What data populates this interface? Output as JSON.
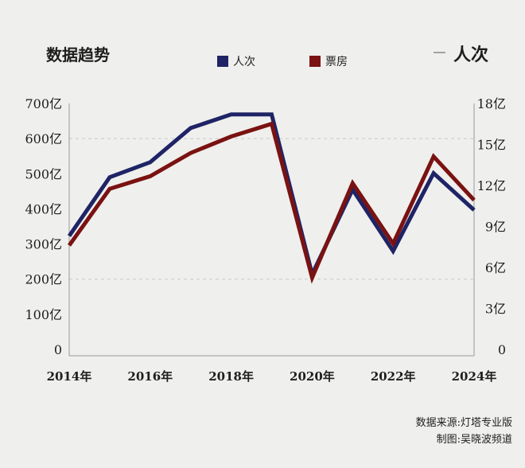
{
  "chart_data": {
    "type": "line",
    "title": "",
    "left_axis_title": "数据趋势",
    "right_axis_title": "人次",
    "legend": {
      "placement": "top-center"
    },
    "x": [
      "2014",
      "2015",
      "2016",
      "2017",
      "2018",
      "2019",
      "2020",
      "2021",
      "2022",
      "2023",
      "2024"
    ],
    "x_tick_labels": [
      "2014年",
      "2016年",
      "2018年",
      "2020年",
      "2022年",
      "2024年"
    ],
    "y_left": {
      "ticks": [
        "0",
        "100亿",
        "200亿",
        "300亿",
        "400亿",
        "500亿",
        "600亿",
        "700亿"
      ],
      "range": [
        0,
        700
      ]
    },
    "y_right": {
      "ticks": [
        "0",
        "3亿",
        "6亿",
        "9亿",
        "12亿",
        "15亿",
        "18亿"
      ],
      "range": [
        0,
        18
      ]
    },
    "grid": "dashed horizontal lines at 200亿/600亿",
    "series": [
      {
        "name": "人次",
        "axis": "right",
        "color": "#1f2466",
        "values": [
          8.3,
          12.6,
          13.7,
          16.2,
          17.2,
          17.2,
          5.5,
          11.7,
          7.2,
          12.9,
          10.2
        ]
      },
      {
        "name": "票房",
        "axis": "left",
        "color": "#7a1212",
        "values": [
          296,
          457,
          493,
          559,
          606,
          642,
          204,
          473,
          301,
          549,
          425
        ]
      }
    ]
  },
  "footer": {
    "source": "数据来源:灯塔专业版",
    "credit": "制图:吴晓波频道"
  }
}
